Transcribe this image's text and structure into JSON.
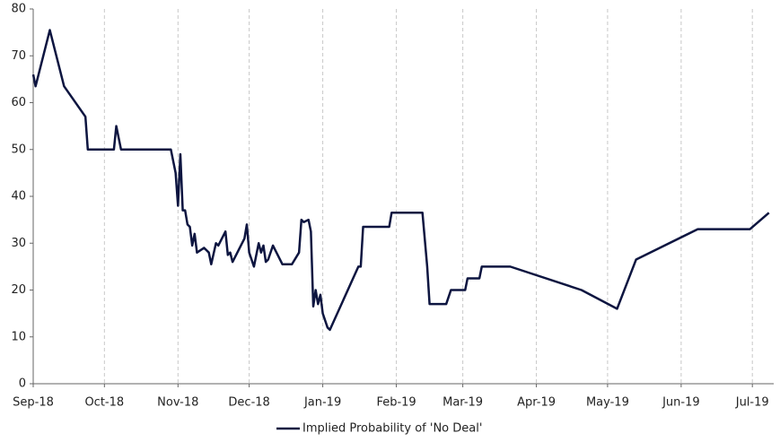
{
  "chart_data": {
    "type": "line",
    "x": [
      0,
      1,
      7,
      13,
      22,
      23,
      34,
      35,
      37,
      58,
      60,
      61,
      62,
      63,
      64,
      65,
      66,
      67,
      68,
      69,
      72,
      74,
      75,
      77,
      78,
      81,
      82,
      83,
      84,
      89,
      90,
      91,
      93,
      95,
      96,
      97,
      98,
      99,
      101,
      105,
      109,
      112,
      113,
      114,
      116,
      117,
      118,
      119,
      120,
      121,
      122,
      124,
      125,
      137,
      138,
      139,
      150,
      151,
      164,
      166,
      167,
      174,
      176,
      182,
      183,
      188,
      189,
      201,
      231,
      246,
      254,
      280,
      302,
      310
    ],
    "series": [
      {
        "name": "Implied Probability of 'No Deal'",
        "color": "#0d1540",
        "values": [
          66,
          63.5,
          75.5,
          63.5,
          57,
          50,
          50,
          55,
          50,
          50,
          45,
          38,
          49,
          37,
          37,
          34,
          33.5,
          29.5,
          32,
          28,
          29,
          28,
          25.5,
          30,
          29.5,
          32.5,
          27.5,
          28,
          26,
          31,
          34,
          28,
          25,
          30,
          28,
          29.5,
          26,
          26.5,
          29.5,
          25.5,
          25.5,
          28,
          35,
          34.5,
          35,
          32.5,
          16.5,
          20,
          17,
          19,
          15,
          12,
          11.5,
          25,
          25,
          33.5,
          33.5,
          36.5,
          36.5,
          25,
          17,
          17,
          20,
          20,
          22.5,
          22.5,
          25,
          25,
          20,
          16,
          26.5,
          33,
          33,
          36.5
        ]
      }
    ],
    "xlim": [
      0,
      312
    ],
    "xticks": [
      {
        "value": 0,
        "label": "Sep-18"
      },
      {
        "value": 30,
        "label": "Oct-18"
      },
      {
        "value": 61,
        "label": "Nov-18"
      },
      {
        "value": 91,
        "label": "Dec-18"
      },
      {
        "value": 122,
        "label": "Jan-19"
      },
      {
        "value": 153,
        "label": "Feb-19"
      },
      {
        "value": 181,
        "label": "Mar-19"
      },
      {
        "value": 212,
        "label": "Apr-19"
      },
      {
        "value": 242,
        "label": "May-19"
      },
      {
        "value": 273,
        "label": "Jun-19"
      },
      {
        "value": 303,
        "label": "Jul-19"
      }
    ],
    "ylim": [
      0,
      80
    ],
    "yticks": [
      0,
      10,
      20,
      30,
      40,
      50,
      60,
      70,
      80
    ],
    "grid": "x"
  }
}
